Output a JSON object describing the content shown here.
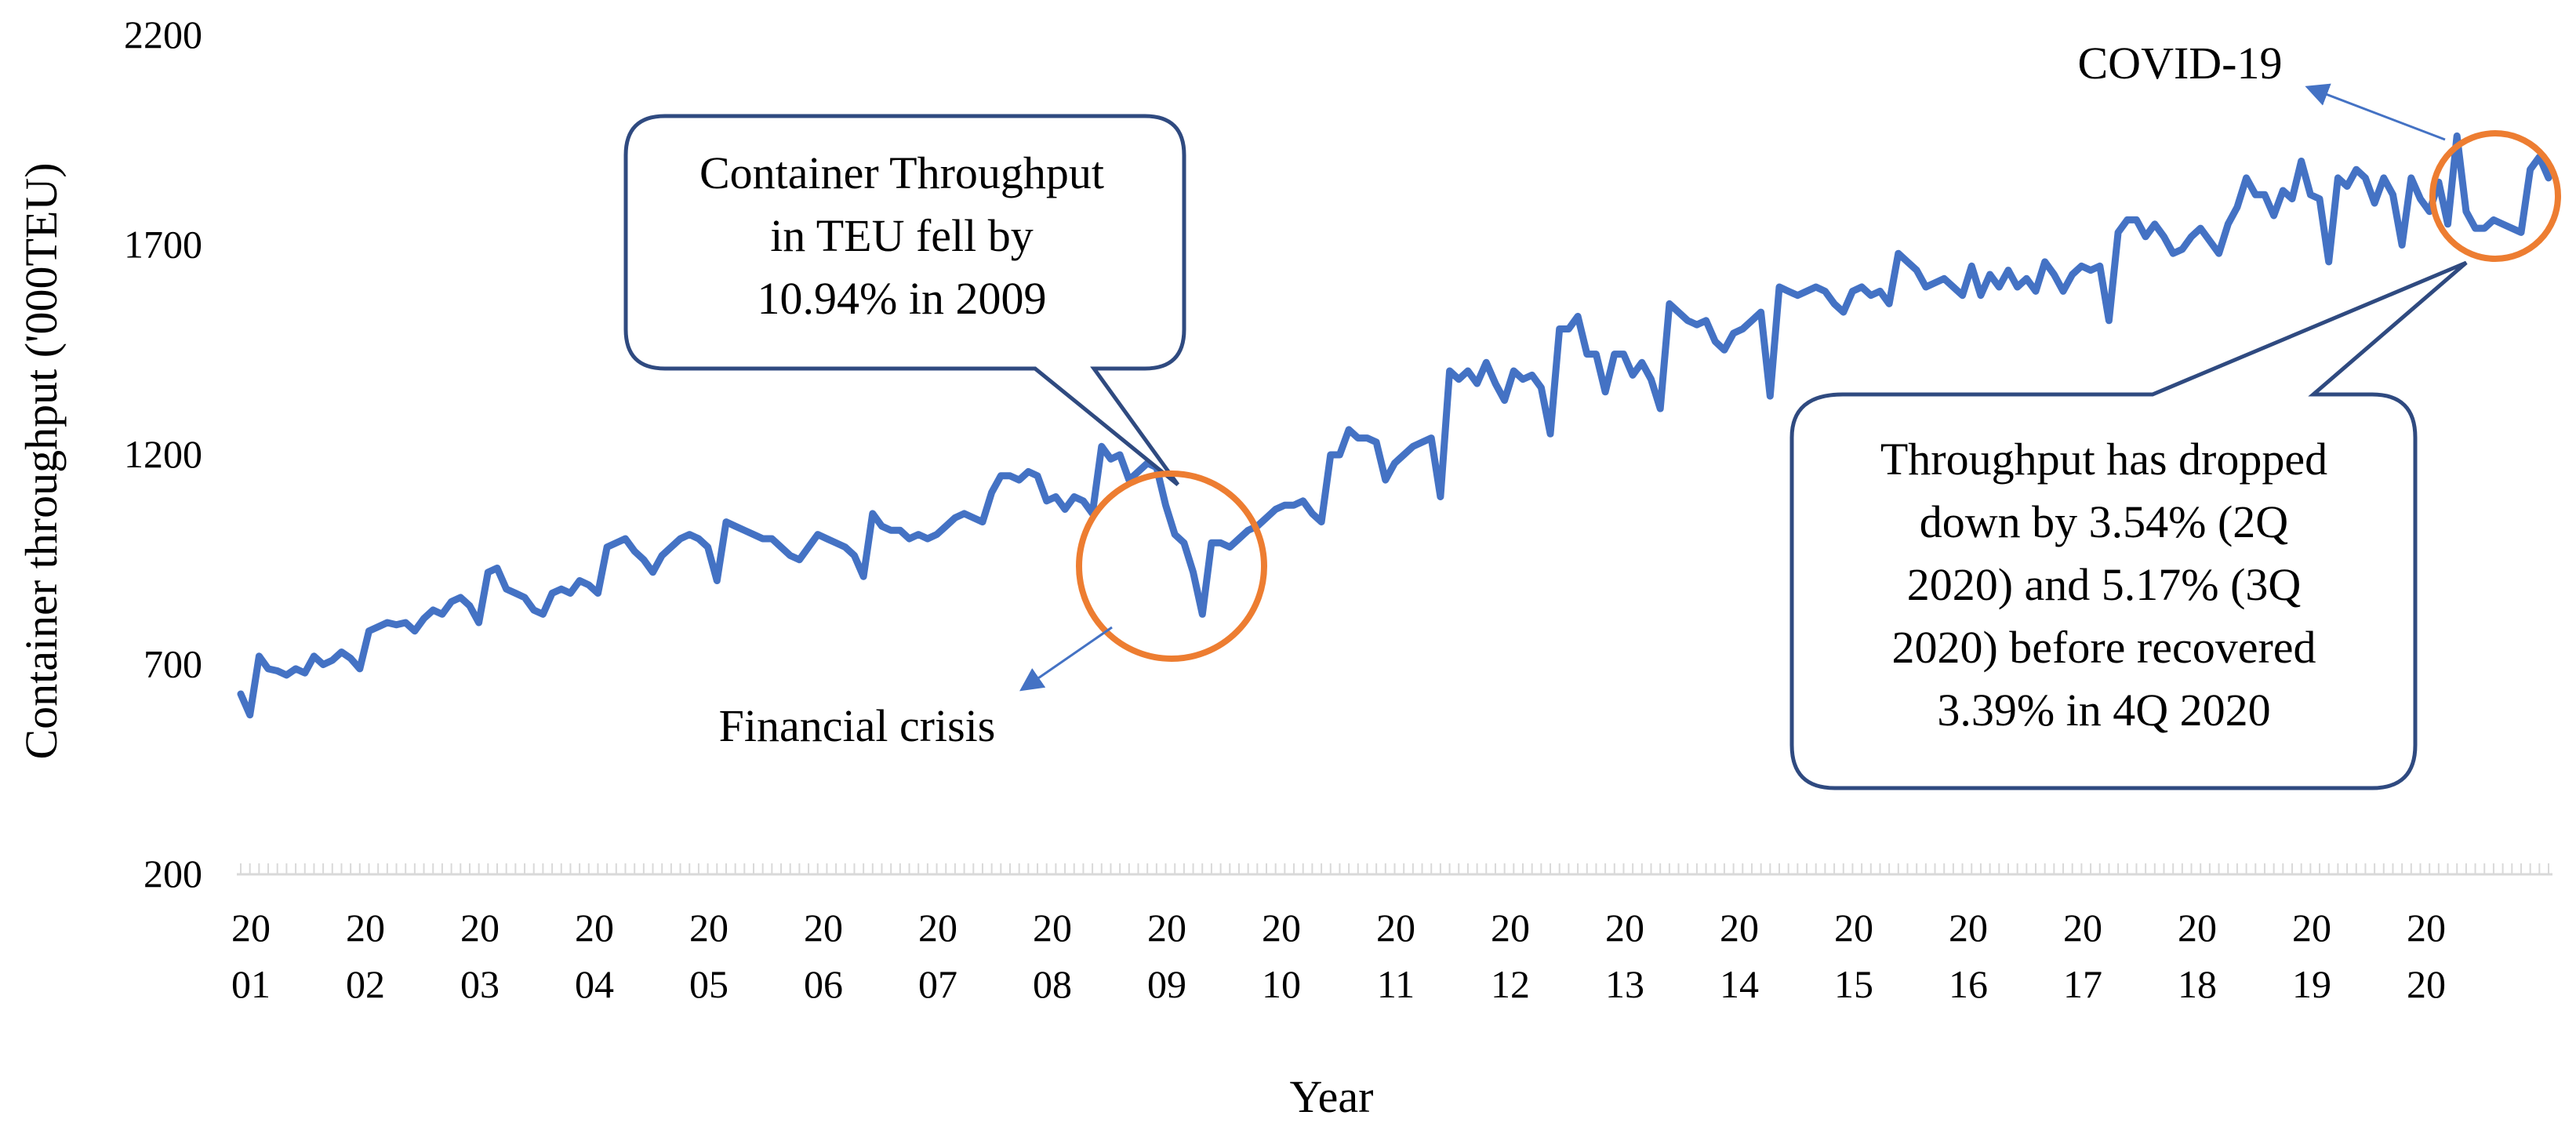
{
  "chart_data": {
    "type": "line",
    "title": "",
    "xlabel": "Year",
    "ylabel": "Container throughput ('000TEU)",
    "ylim": [
      200,
      2200
    ],
    "yticks": [
      200,
      700,
      1200,
      1700,
      2200
    ],
    "ytick_labels": [
      "200",
      "700",
      "1200",
      "1700",
      "2200"
    ],
    "xtick_labels": [
      [
        "20",
        "01"
      ],
      [
        "20",
        "02"
      ],
      [
        "20",
        "03"
      ],
      [
        "20",
        "04"
      ],
      [
        "20",
        "05"
      ],
      [
        "20",
        "06"
      ],
      [
        "20",
        "07"
      ],
      [
        "20",
        "08"
      ],
      [
        "20",
        "09"
      ],
      [
        "20",
        "10"
      ],
      [
        "20",
        "11"
      ],
      [
        "20",
        "12"
      ],
      [
        "20",
        "13"
      ],
      [
        "20",
        "14"
      ],
      [
        "20",
        "15"
      ],
      [
        "20",
        "16"
      ],
      [
        "20",
        "17"
      ],
      [
        "20",
        "18"
      ],
      [
        "20",
        "19"
      ],
      [
        "20",
        "20"
      ]
    ],
    "grid": false,
    "legend": "none",
    "series": [
      {
        "name": "Container throughput",
        "color": "#4472C4",
        "start": "2001-01",
        "frequency": "monthly",
        "values": [
          630,
          580,
          720,
          690,
          685,
          675,
          690,
          680,
          720,
          700,
          710,
          730,
          715,
          690,
          780,
          790,
          800,
          795,
          800,
          780,
          810,
          830,
          820,
          850,
          860,
          840,
          800,
          920,
          930,
          880,
          870,
          860,
          830,
          820,
          870,
          880,
          870,
          900,
          890,
          870,
          980,
          990,
          1000,
          970,
          950,
          920,
          960,
          980,
          1000,
          1010,
          1000,
          980,
          900,
          1040,
          1030,
          1020,
          1010,
          1000,
          1000,
          980,
          960,
          950,
          980,
          1010,
          1000,
          990,
          980,
          960,
          910,
          1060,
          1030,
          1020,
          1020,
          1000,
          1010,
          1000,
          1010,
          1030,
          1050,
          1060,
          1050,
          1040,
          1110,
          1150,
          1150,
          1140,
          1160,
          1150,
          1090,
          1100,
          1070,
          1100,
          1090,
          1060,
          1220,
          1190,
          1200,
          1140,
          1160,
          1180,
          1170,
          1080,
          1010,
          990,
          920,
          820,
          990,
          990,
          980,
          1000,
          1020,
          1030,
          1050,
          1070,
          1080,
          1080,
          1090,
          1060,
          1040,
          1200,
          1200,
          1260,
          1240,
          1240,
          1230,
          1140,
          1180,
          1200,
          1220,
          1230,
          1240,
          1100,
          1400,
          1380,
          1400,
          1370,
          1420,
          1370,
          1330,
          1400,
          1380,
          1390,
          1360,
          1250,
          1500,
          1500,
          1530,
          1440,
          1440,
          1350,
          1440,
          1440,
          1390,
          1420,
          1380,
          1310,
          1560,
          1540,
          1520,
          1510,
          1520,
          1470,
          1450,
          1490,
          1500,
          1520,
          1540,
          1340,
          1600,
          1590,
          1580,
          1590,
          1600,
          1590,
          1560,
          1540,
          1590,
          1600,
          1580,
          1590,
          1560,
          1680,
          1660,
          1640,
          1600,
          1610,
          1620,
          1600,
          1580,
          1650,
          1580,
          1630,
          1600,
          1640,
          1600,
          1620,
          1590,
          1660,
          1630,
          1590,
          1630,
          1650,
          1640,
          1650,
          1520,
          1730,
          1760,
          1760,
          1720,
          1750,
          1720,
          1680,
          1690,
          1720,
          1740,
          1710,
          1680,
          1750,
          1790,
          1860,
          1820,
          1820,
          1770,
          1830,
          1810,
          1900,
          1820,
          1810,
          1660,
          1860,
          1840,
          1880,
          1860,
          1800,
          1860,
          1820,
          1700,
          1860,
          1810,
          1780,
          1850,
          1750,
          1960,
          1780,
          1740,
          1740,
          1760,
          1750,
          1740,
          1730,
          1880,
          1910,
          1860
        ]
      }
    ],
    "annotations": [
      {
        "name": "financial-crisis",
        "label": "Financial crisis",
        "callout_lines": [
          "Container Throughput",
          "in TEU fell by",
          "10.94% in 2009"
        ]
      },
      {
        "name": "covid-19",
        "label": "COVID-19",
        "callout_lines": [
          "Throughput has dropped",
          "down by 3.54% (2Q",
          "2020) and 5.17% (3Q",
          "2020) before recovered",
          "3.39% in 4Q 2020"
        ]
      }
    ],
    "colors": {
      "line": "#4472C4",
      "circle": "#ED7D31",
      "callout_border": "#2F4A80",
      "arrow": "#4472C4",
      "axis": "#D9D9D9"
    }
  }
}
